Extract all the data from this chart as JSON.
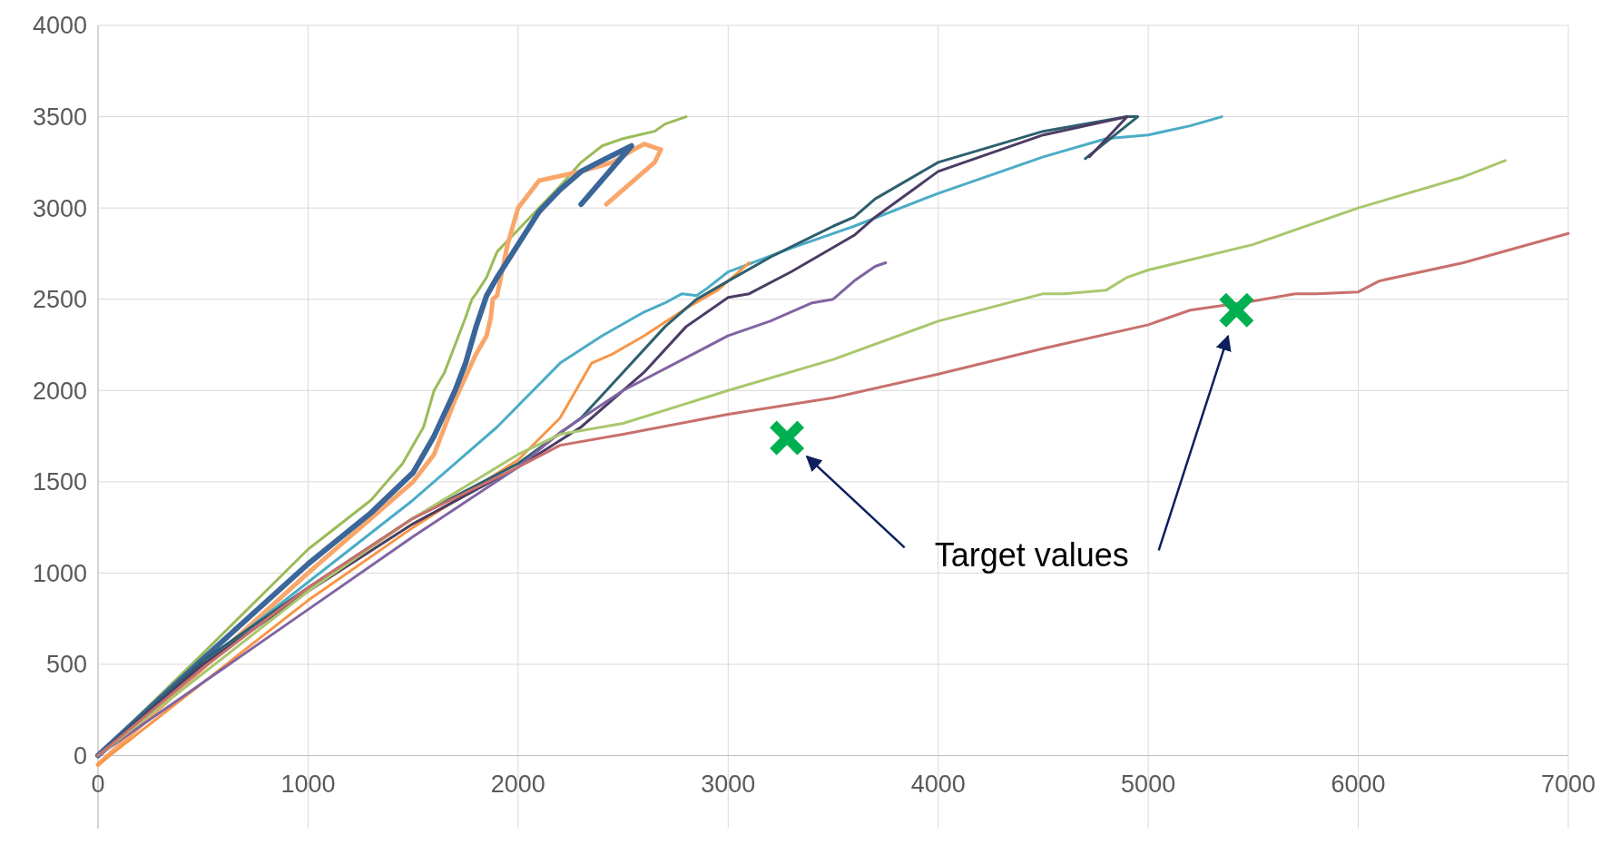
{
  "chart_data": {
    "type": "line",
    "xlim": [
      0,
      7000
    ],
    "ylim": [
      -400,
      4000
    ],
    "xticks": [
      0,
      1000,
      2000,
      3000,
      4000,
      5000,
      6000,
      7000
    ],
    "yticks": [
      0,
      500,
      1000,
      1500,
      2000,
      2500,
      3000,
      3500,
      4000
    ],
    "grid": true,
    "marker": "none",
    "line_style": "solid",
    "annotations": [
      "Target values"
    ],
    "series": [
      {
        "color": "#9bbb59",
        "x": [
          0,
          500,
          1000,
          1300,
          1450,
          1550,
          1600,
          1650,
          1700,
          1750,
          1780,
          1800,
          1850,
          1900,
          2000,
          2100,
          2200,
          2300,
          2400,
          2500,
          2650,
          2700,
          2800
        ],
        "values": [
          0,
          560,
          1130,
          1400,
          1600,
          1800,
          2000,
          2100,
          2250,
          2400,
          2500,
          2530,
          2620,
          2760,
          2880,
          3000,
          3120,
          3250,
          3340,
          3380,
          3420,
          3460,
          3500
        ]
      },
      {
        "color": "#f9a66b",
        "x": [
          0,
          500,
          1000,
          1300,
          1500,
          1600,
          1700,
          1800,
          1850,
          1870,
          1880,
          1900,
          1950,
          2000,
          2100,
          2300,
          2450,
          2550,
          2600,
          2680,
          2650,
          2420
        ],
        "values": [
          -50,
          480,
          1000,
          1300,
          1500,
          1650,
          1950,
          2200,
          2300,
          2400,
          2500,
          2520,
          2800,
          3000,
          3150,
          3200,
          3250,
          3320,
          3350,
          3320,
          3250,
          3020
        ]
      },
      {
        "color": "#3a6699",
        "x": [
          0,
          500,
          1000,
          1300,
          1500,
          1600,
          1700,
          1750,
          1800,
          1850,
          1900,
          2000,
          2100,
          2200,
          2300,
          2400,
          2540,
          2300
        ],
        "values": [
          0,
          530,
          1050,
          1330,
          1550,
          1750,
          2000,
          2150,
          2350,
          2520,
          2620,
          2800,
          2980,
          3100,
          3200,
          3260,
          3340,
          3020
        ]
      },
      {
        "color": "#4bacc6",
        "x": [
          0,
          500,
          1000,
          1500,
          1900,
          2200,
          2400,
          2600,
          2700,
          2780,
          2850,
          2900,
          3000,
          3300,
          3600,
          4000,
          4500,
          4800,
          5000,
          5200,
          5350
        ],
        "values": [
          0,
          500,
          950,
          1400,
          1800,
          2150,
          2300,
          2430,
          2480,
          2530,
          2520,
          2560,
          2650,
          2780,
          2900,
          3080,
          3280,
          3380,
          3400,
          3450,
          3500
        ]
      },
      {
        "color": "#f79646",
        "x": [
          0,
          500,
          1000,
          1500,
          2000,
          2200,
          2350,
          2450,
          2600,
          2800,
          2950,
          3050,
          3100
        ],
        "values": [
          -50,
          400,
          850,
          1250,
          1620,
          1850,
          2150,
          2200,
          2300,
          2450,
          2550,
          2650,
          2700
        ]
      },
      {
        "color": "#2d5f6e",
        "x": [
          0,
          500,
          1000,
          1500,
          2000,
          2300,
          2500,
          2700,
          2850,
          3000,
          3200,
          3500,
          3600,
          3700,
          4000,
          4500,
          4900,
          4950,
          4700
        ],
        "values": [
          0,
          520,
          920,
          1300,
          1600,
          1850,
          2100,
          2350,
          2500,
          2600,
          2730,
          2900,
          2950,
          3050,
          3250,
          3420,
          3500,
          3500,
          3270
        ]
      },
      {
        "color": "#4b3c64",
        "x": [
          0,
          500,
          1000,
          1500,
          2000,
          2300,
          2600,
          2800,
          3000,
          3100,
          3300,
          3600,
          3700,
          4000,
          4500,
          4900,
          4720
        ],
        "values": [
          0,
          500,
          900,
          1270,
          1580,
          1800,
          2100,
          2350,
          2510,
          2530,
          2650,
          2850,
          2950,
          3200,
          3400,
          3500,
          3280
        ]
      },
      {
        "color": "#8064a2",
        "x": [
          0,
          500,
          1000,
          1500,
          2000,
          2200,
          2500,
          2800,
          3000,
          3200,
          3400,
          3500,
          3600,
          3700,
          3750
        ],
        "values": [
          0,
          400,
          800,
          1200,
          1580,
          1770,
          2000,
          2180,
          2300,
          2380,
          2480,
          2500,
          2600,
          2680,
          2700
        ]
      },
      {
        "color": "#a9c76d",
        "x": [
          0,
          500,
          1000,
          1500,
          2000,
          2200,
          2500,
          3000,
          3500,
          4000,
          4500,
          4600,
          4800,
          4900,
          5000,
          5500,
          6000,
          6500,
          6700
        ],
        "values": [
          0,
          450,
          900,
          1300,
          1650,
          1760,
          1820,
          2000,
          2170,
          2380,
          2530,
          2530,
          2550,
          2620,
          2660,
          2800,
          3000,
          3170,
          3260
        ]
      },
      {
        "color": "#c8706c",
        "x": [
          0,
          500,
          1000,
          1500,
          2000,
          2200,
          2500,
          3000,
          3500,
          4000,
          4500,
          5000,
          5200,
          5500,
          5700,
          5800,
          6000,
          6100,
          6500,
          7000
        ],
        "values": [
          0,
          480,
          920,
          1300,
          1580,
          1700,
          1760,
          1870,
          1960,
          2090,
          2230,
          2360,
          2440,
          2490,
          2530,
          2530,
          2540,
          2600,
          2700,
          2860
        ]
      },
      {
        "type": "scatter",
        "marker": "cross",
        "color": "#00b050",
        "x": [
          3280,
          5420
        ],
        "values": [
          1740,
          2440
        ]
      }
    ]
  }
}
